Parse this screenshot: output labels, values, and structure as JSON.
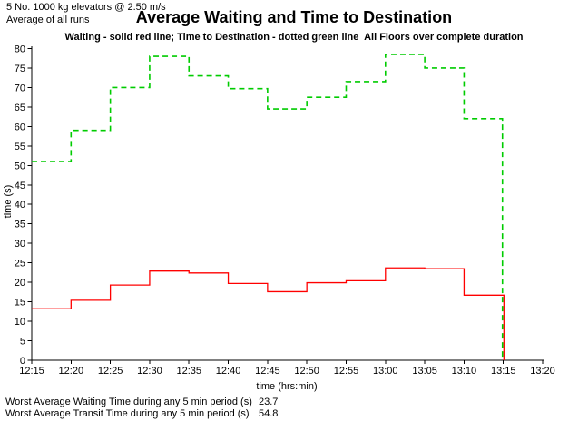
{
  "header": {
    "info_line1": "5 No. 1000 kg elevators @ 2.50 m/s",
    "info_line2": "Average of all runs",
    "title": "Average Waiting and Time to Destination",
    "subtitle": "Waiting - solid red line; Time to Destination - dotted green line  All Floors over complete duration"
  },
  "chart_data": {
    "type": "line",
    "subtype": "step-after",
    "title": "Average Waiting and Time to Destination",
    "xlabel": "time (hrs:min)",
    "ylabel": "time (s)",
    "ylim": [
      0,
      80
    ],
    "ytick_step": 5,
    "grid": false,
    "legend_position": "none",
    "x_tick_labels": [
      "12:15",
      "12:20",
      "12:25",
      "12:30",
      "12:35",
      "12:40",
      "12:45",
      "12:50",
      "12:55",
      "13:00",
      "13:05",
      "13:10",
      "13:15",
      "13:20"
    ],
    "data_end_label": "13:15",
    "series": [
      {
        "name": "Time to Destination",
        "style": "dashed",
        "color": "#00cc00",
        "values": [
          51,
          59,
          70,
          78,
          73,
          69.7,
          64.5,
          67.5,
          71.5,
          78.5,
          75,
          62
        ]
      },
      {
        "name": "Waiting",
        "style": "solid",
        "color": "#ff0000",
        "values": [
          13.2,
          15.4,
          19.3,
          22.9,
          22.4,
          19.7,
          17.6,
          19.9,
          20.4,
          23.7,
          23.5,
          16.7
        ]
      }
    ]
  },
  "footer": {
    "rows": [
      {
        "label": "Worst Average Waiting Time during any 5 min period (s)",
        "value": "23.7"
      },
      {
        "label": "Worst Average Transit Time during any 5 min period (s)",
        "value": "54.8"
      }
    ]
  }
}
